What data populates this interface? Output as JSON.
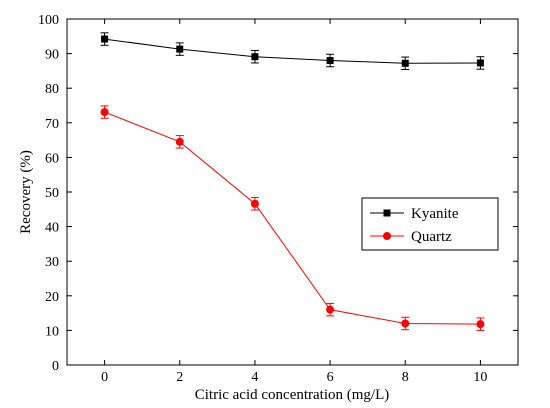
{
  "chart_data": {
    "type": "line",
    "xlabel": "Citric acid concentration (mg/L)",
    "ylabel": "Recovery (%)",
    "xlim": [
      -1,
      11
    ],
    "ylim": [
      0,
      100
    ],
    "xticks": [
      0,
      2,
      4,
      6,
      8,
      10
    ],
    "yticks": [
      0,
      10,
      20,
      30,
      40,
      50,
      60,
      70,
      80,
      90,
      100
    ],
    "grid": false,
    "legend_position": "right",
    "series": [
      {
        "name": "Kyanite",
        "color": "#000000",
        "marker": "square",
        "x": [
          0,
          2,
          4,
          6,
          8,
          10
        ],
        "y": [
          94.2,
          91.3,
          89.1,
          88.0,
          87.2,
          87.3
        ],
        "error": [
          1.8,
          1.8,
          1.8,
          1.8,
          1.8,
          1.8
        ]
      },
      {
        "name": "Quartz",
        "color": "#ff0000",
        "marker": "circle",
        "x": [
          0,
          2,
          4,
          6,
          8,
          10
        ],
        "y": [
          73.1,
          64.5,
          46.6,
          16.0,
          12.0,
          11.8
        ],
        "error": [
          1.8,
          1.8,
          1.8,
          1.8,
          1.8,
          1.8
        ]
      }
    ]
  }
}
